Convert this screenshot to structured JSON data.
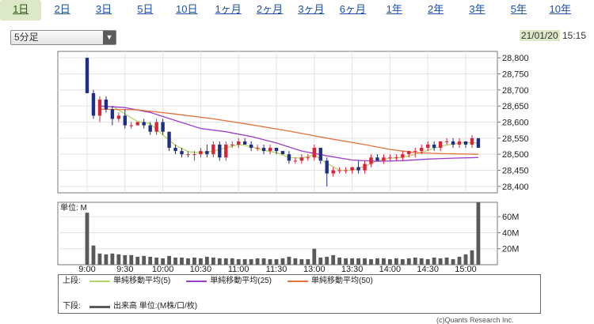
{
  "tabs": [
    {
      "label": "1日",
      "active": true
    },
    {
      "label": "2日"
    },
    {
      "label": "3日"
    },
    {
      "label": "5日"
    },
    {
      "label": "10日"
    },
    {
      "label": "1ヶ月"
    },
    {
      "label": "2ヶ月"
    },
    {
      "label": "3ヶ月"
    },
    {
      "label": "6ヶ月"
    },
    {
      "label": "1年"
    },
    {
      "label": "2年"
    },
    {
      "label": "3年"
    },
    {
      "label": "5年"
    },
    {
      "label": "10年"
    }
  ],
  "interval_select": {
    "value": "5分足",
    "arrow_icon": "triangle-down-icon"
  },
  "timestamp": {
    "date": "21/01/20",
    "time": "15:15"
  },
  "chart_data": [
    {
      "type": "candlestick",
      "name": "price",
      "ylim": [
        28380,
        28820
      ],
      "yticks": [
        28400,
        28450,
        28500,
        28550,
        28600,
        28650,
        28700,
        28750,
        28800
      ],
      "ytick_labels": [
        "28,400",
        "28,450",
        "28,500",
        "28,550",
        "28,600",
        "28,650",
        "28,700",
        "28,750",
        "28,800"
      ],
      "xlim": [
        0,
        72
      ],
      "xticks": [
        {
          "at": 0,
          "label": "9:00"
        },
        {
          "at": 6,
          "label": "9:30"
        },
        {
          "at": 12,
          "label": "10:00"
        },
        {
          "at": 18,
          "label": "10:30"
        },
        {
          "at": 24,
          "label": "11:00"
        },
        {
          "at": 30,
          "label": "11:30"
        },
        {
          "at": 36,
          "label": "13:00"
        },
        {
          "at": 42,
          "label": "13:30"
        },
        {
          "at": 48,
          "label": "14:00"
        },
        {
          "at": 54,
          "label": "14:30"
        },
        {
          "at": 60,
          "label": "15:00"
        }
      ],
      "grid": true,
      "colors": {
        "up": "#d9243a",
        "down": "#1f2f86"
      },
      "ohlc": [
        [
          28800,
          28800,
          28690,
          28690
        ],
        [
          28690,
          28700,
          28610,
          28620
        ],
        [
          28620,
          28680,
          28600,
          28670
        ],
        [
          28670,
          28680,
          28630,
          28640
        ],
        [
          28640,
          28650,
          28590,
          28610
        ],
        [
          28610,
          28630,
          28600,
          28620
        ],
        [
          28620,
          28640,
          28580,
          28590
        ],
        [
          28590,
          28600,
          28580,
          28590
        ],
        [
          28590,
          28600,
          28590,
          28600
        ],
        [
          28600,
          28610,
          28580,
          28590
        ],
        [
          28590,
          28600,
          28560,
          28570
        ],
        [
          28570,
          28610,
          28560,
          28600
        ],
        [
          28600,
          28610,
          28560,
          28570
        ],
        [
          28570,
          28570,
          28510,
          28520
        ],
        [
          28520,
          28530,
          28500,
          28510
        ],
        [
          28510,
          28520,
          28490,
          28500
        ],
        [
          28500,
          28510,
          28490,
          28500
        ],
        [
          28500,
          28510,
          28480,
          28500
        ],
        [
          28500,
          28520,
          28490,
          28510
        ],
        [
          28510,
          28530,
          28490,
          28500
        ],
        [
          28500,
          28540,
          28490,
          28530
        ],
        [
          28530,
          28540,
          28480,
          28490
        ],
        [
          28490,
          28540,
          28480,
          28530
        ],
        [
          28530,
          28540,
          28520,
          28530
        ],
        [
          28530,
          28550,
          28520,
          28540
        ],
        [
          28540,
          28550,
          28530,
          28530
        ],
        [
          28530,
          28540,
          28510,
          28520
        ],
        [
          28520,
          28530,
          28510,
          28520
        ],
        [
          28520,
          28530,
          28500,
          28510
        ],
        [
          28510,
          28530,
          28500,
          28520
        ],
        [
          28520,
          28520,
          28500,
          28510
        ],
        [
          28510,
          28510,
          28500,
          28500
        ],
        [
          28500,
          28510,
          28470,
          28480
        ],
        [
          28480,
          28490,
          28470,
          28480
        ],
        [
          28480,
          28500,
          28470,
          28490
        ],
        [
          28490,
          28500,
          28480,
          28490
        ],
        [
          28490,
          28530,
          28480,
          28520
        ],
        [
          28520,
          28520,
          28470,
          28480
        ],
        [
          28480,
          28490,
          28400,
          28440
        ],
        [
          28440,
          28460,
          28430,
          28450
        ],
        [
          28450,
          28460,
          28440,
          28450
        ],
        [
          28450,
          28460,
          28440,
          28450
        ],
        [
          28450,
          28460,
          28440,
          28460
        ],
        [
          28460,
          28480,
          28440,
          28450
        ],
        [
          28450,
          28480,
          28440,
          28470
        ],
        [
          28470,
          28500,
          28460,
          28490
        ],
        [
          28490,
          28500,
          28480,
          28480
        ],
        [
          28480,
          28500,
          28470,
          28490
        ],
        [
          28490,
          28500,
          28480,
          28490
        ],
        [
          28490,
          28500,
          28480,
          28490
        ],
        [
          28490,
          28510,
          28480,
          28500
        ],
        [
          28500,
          28510,
          28490,
          28510
        ],
        [
          28510,
          28520,
          28490,
          28510
        ],
        [
          28510,
          28530,
          28500,
          28520
        ],
        [
          28520,
          28540,
          28510,
          28530
        ],
        [
          28530,
          28540,
          28510,
          28520
        ],
        [
          28520,
          28540,
          28510,
          28540
        ],
        [
          28540,
          28550,
          28530,
          28540
        ],
        [
          28540,
          28550,
          28520,
          28530
        ],
        [
          28530,
          28550,
          28520,
          28540
        ],
        [
          28540,
          28540,
          28520,
          28530
        ],
        [
          28530,
          28560,
          28520,
          28550
        ],
        [
          28550,
          28550,
          28520,
          28520
        ]
      ],
      "series": [
        {
          "name": "単純移動平均(5)",
          "color": "#b5d56b",
          "x": [
            4,
            6,
            8,
            10,
            12,
            14,
            16,
            18,
            20,
            22,
            24,
            26,
            28,
            30,
            32,
            34,
            36,
            38,
            40,
            42,
            44,
            46,
            48,
            50,
            52,
            54,
            56,
            58,
            60,
            62
          ],
          "values": [
            28650,
            28625,
            28602,
            28595,
            28560,
            28528,
            28508,
            28504,
            28510,
            28520,
            28530,
            28524,
            28512,
            28505,
            28490,
            28488,
            28498,
            28472,
            28450,
            28450,
            28462,
            28480,
            28488,
            28490,
            28500,
            28512,
            28525,
            28532,
            28536,
            28535
          ]
        },
        {
          "name": "単純移動平均(25)",
          "color": "#9b3fc9",
          "x": [
            2,
            6,
            10,
            14,
            18,
            22,
            26,
            30,
            34,
            38,
            42,
            46,
            50,
            54,
            58,
            62
          ],
          "values": [
            28650,
            28645,
            28630,
            28605,
            28580,
            28570,
            28555,
            28535,
            28510,
            28495,
            28482,
            28478,
            28480,
            28485,
            28488,
            28490
          ]
        },
        {
          "name": "単純移動平均(50)",
          "color": "#e2733c",
          "x": [
            2,
            8,
            14,
            20,
            26,
            32,
            38,
            44,
            48,
            52,
            56,
            62
          ],
          "values": [
            28640,
            28638,
            28625,
            28610,
            28592,
            28572,
            28550,
            28530,
            28515,
            28505,
            28502,
            28500
          ]
        }
      ]
    },
    {
      "type": "bar",
      "name": "volume",
      "unit_label": "単位: M",
      "ylim": [
        0,
        78
      ],
      "yticks": [
        20,
        40,
        60
      ],
      "ytick_labels": [
        "20M",
        "40M",
        "60M"
      ],
      "color": "#5a5a5a",
      "values": [
        65,
        24,
        14,
        13,
        14,
        13,
        12,
        12,
        10,
        11,
        10,
        9,
        8,
        11,
        9,
        9,
        8,
        9,
        8,
        10,
        9,
        8,
        8,
        8,
        7,
        7,
        7,
        8,
        8,
        7,
        7,
        8,
        10,
        8,
        7,
        7,
        20,
        9,
        10,
        12,
        9,
        8,
        8,
        8,
        8,
        7,
        8,
        8,
        7,
        8,
        7,
        8,
        9,
        8,
        7,
        9,
        8,
        9,
        7,
        10,
        13,
        18,
        78
      ]
    }
  ],
  "legend": {
    "top_label": "上段:",
    "bottom_label": "下段:",
    "items": [
      {
        "label": "単純移動平均(5)",
        "color": "#b5d56b"
      },
      {
        "label": "単純移動平均(25)",
        "color": "#9b3fc9"
      },
      {
        "label": "単純移動平均(50)",
        "color": "#e2733c"
      }
    ],
    "volume_label": "出来高 単位:(M株/口/枚)"
  },
  "credit": "(c)Quants Research Inc."
}
